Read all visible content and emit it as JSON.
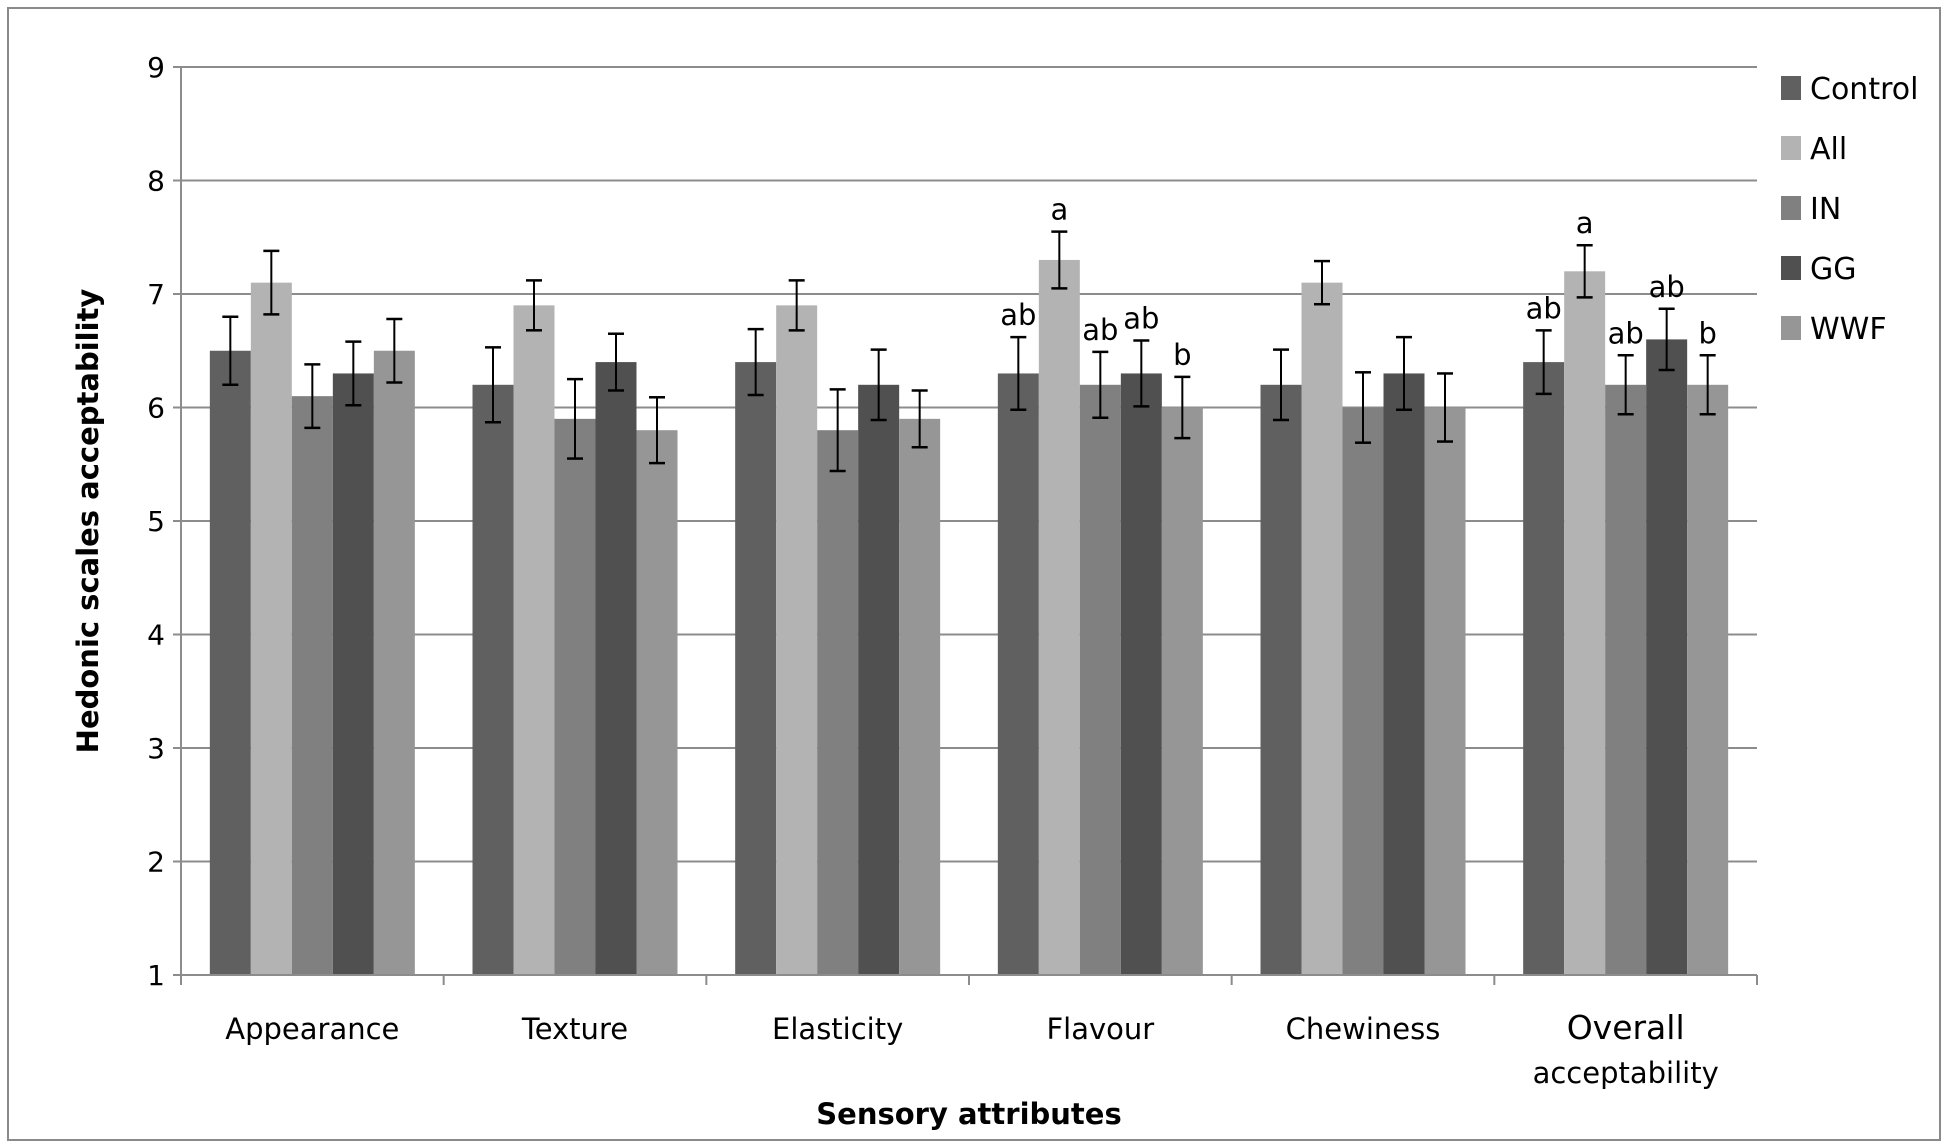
{
  "chart_data": {
    "type": "bar",
    "title": "",
    "xlabel": "Sensory attributes",
    "ylabel": "Hedonic scales acceptability",
    "ylim": [
      1,
      9
    ],
    "yticks": [
      "1",
      "2",
      "3",
      "4",
      "5",
      "6",
      "7",
      "8",
      "9"
    ],
    "grid": true,
    "legend_position": "right",
    "categories": [
      "Appearance",
      "Texture",
      "Elasticity",
      "Flavour",
      "Chewiness",
      "Overall acceptability"
    ],
    "category_lines": [
      [
        "Appearance"
      ],
      [
        "Texture"
      ],
      [
        "Elasticity"
      ],
      [
        "Flavour"
      ],
      [
        "Chewiness"
      ],
      [
        "Overall",
        "acceptability"
      ]
    ],
    "series": [
      {
        "name": "Control",
        "color": "#606060",
        "values": [
          6.5,
          6.2,
          6.4,
          6.3,
          6.2,
          6.4
        ],
        "errors": [
          0.3,
          0.33,
          0.29,
          0.32,
          0.31,
          0.28
        ],
        "annotations": [
          "",
          "",
          "",
          "ab",
          "",
          "ab"
        ]
      },
      {
        "name": "All",
        "color": "#b3b3b3",
        "values": [
          7.1,
          6.9,
          6.9,
          7.3,
          7.1,
          7.2
        ],
        "errors": [
          0.28,
          0.22,
          0.22,
          0.25,
          0.19,
          0.23
        ],
        "annotations": [
          "",
          "",
          "",
          "a",
          "",
          "a"
        ]
      },
      {
        "name": "IN",
        "color": "#808080",
        "values": [
          6.1,
          5.9,
          5.8,
          6.2,
          6.0,
          6.2
        ],
        "errors": [
          0.28,
          0.35,
          0.36,
          0.29,
          0.31,
          0.26
        ],
        "annotations": [
          "",
          "",
          "",
          "ab",
          "",
          "ab"
        ]
      },
      {
        "name": "GG",
        "color": "#505050",
        "values": [
          6.3,
          6.4,
          6.2,
          6.3,
          6.3,
          6.6
        ],
        "errors": [
          0.28,
          0.25,
          0.31,
          0.29,
          0.32,
          0.27
        ],
        "annotations": [
          "",
          "",
          "",
          "ab",
          "",
          "ab"
        ]
      },
      {
        "name": "WWF",
        "color": "#969696",
        "values": [
          6.5,
          5.8,
          5.9,
          6.0,
          6.0,
          6.2
        ],
        "errors": [
          0.28,
          0.29,
          0.25,
          0.27,
          0.3,
          0.26
        ],
        "annotations": [
          "",
          "",
          "",
          "b",
          "",
          "b"
        ]
      }
    ]
  }
}
